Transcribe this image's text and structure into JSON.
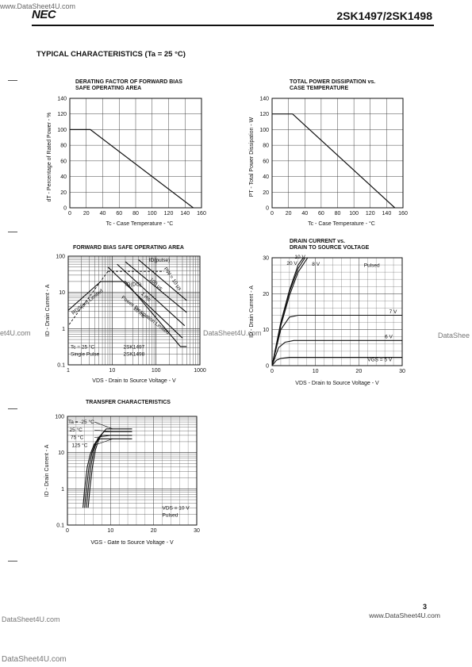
{
  "header": {
    "site_url_top": "www.DataSheet4U.com",
    "brand": "NEC",
    "part_numbers": "2SK1497/2SK1498"
  },
  "section_title": "TYPICAL CHARACTERISTICS (Ta = 25 °C)",
  "footer": {
    "page_number": "3",
    "site_url": "www.DataSheet4U.com"
  },
  "watermarks": {
    "left_mid": "et4U.com",
    "center": "DataSheet4U.com",
    "right": "DataShee",
    "bottom_left_1": "DataSheet4U.com",
    "bottom_left_2": "DataSheet4U.com"
  },
  "chart_data": [
    {
      "id": "derating",
      "type": "line",
      "title": "DERATING FACTOR OF FORWARD BIAS\nSAFE OPERATING AREA",
      "xlabel": "Tc - Case Temperature - °C",
      "ylabel": "dT - Percentage of Rated Power - %",
      "xlim": [
        0,
        160
      ],
      "ylim": [
        0,
        140
      ],
      "xticks": [
        0,
        20,
        40,
        60,
        80,
        100,
        120,
        140,
        160
      ],
      "yticks": [
        0,
        20,
        40,
        60,
        80,
        100,
        120,
        140
      ],
      "grid": true,
      "x": [
        0,
        25,
        150
      ],
      "y": [
        100,
        100,
        0
      ]
    },
    {
      "id": "power",
      "type": "line",
      "title": "TOTAL POWER DISSIPATION vs.\nCASE TEMPERATURE",
      "xlabel": "Tc - Case Temperature - °C",
      "ylabel": "PT - Total Power Dissipation - W",
      "xlim": [
        0,
        160
      ],
      "ylim": [
        0,
        140
      ],
      "xticks": [
        0,
        20,
        40,
        60,
        80,
        100,
        120,
        140,
        160
      ],
      "yticks": [
        0,
        20,
        40,
        60,
        80,
        100,
        120,
        140
      ],
      "grid": true,
      "x": [
        0,
        25,
        150
      ],
      "y": [
        120,
        120,
        0
      ]
    },
    {
      "id": "fbsoa",
      "type": "line",
      "scale": "log-log",
      "title": "FORWARD BIAS SAFE OPERATING AREA",
      "xlabel": "VDS - Drain to Source Voltage - V",
      "ylabel": "ID - Drain Current - A",
      "xlim": [
        1,
        1000
      ],
      "ylim": [
        0.1,
        100
      ],
      "xticks": [
        "1",
        "10",
        "100",
        "1000"
      ],
      "yticks": [
        "0.1",
        "1",
        "10",
        "100"
      ],
      "grid": true,
      "boundary_label": "ID(DC)",
      "pulse_label": "ID(pulse)",
      "rds_label": "RDS(on) Limited",
      "pd_label": "Power Dissipation Limited",
      "curve_labels": [
        "PW = 10 μs",
        "100 μs",
        "1 ms",
        "10 ms"
      ],
      "conditions": [
        "Tc = 25 °C",
        "Single Pulse"
      ],
      "devices": [
        "2SK1497",
        "2SK1498"
      ],
      "series": [
        {
          "name": "DC",
          "x": [
            1,
            5.5,
            20,
            360,
            500
          ],
          "y": [
            3.2,
            20,
            20,
            0.32,
            0.32
          ]
        },
        {
          "name": "PW = 10 ms",
          "x": [
            8,
            400
          ],
          "y": [
            50,
            0.55
          ]
        },
        {
          "name": "1 ms",
          "x": [
            13,
            450
          ],
          "y": [
            60,
            1.2
          ]
        },
        {
          "name": "100 μs",
          "x": [
            20,
            500
          ],
          "y": [
            70,
            2.8
          ]
        },
        {
          "name": "PW = 10 μs",
          "x": [
            40,
            500
          ],
          "y": [
            80,
            6
          ]
        }
      ]
    },
    {
      "id": "output",
      "type": "line",
      "title": "DRAIN CURRENT vs.\nDRAIN TO SOURCE VOLTAGE",
      "xlabel": "VDS - Drain to Source Voltage - V",
      "ylabel": "ID - Drain Current - A",
      "xlim": [
        0,
        30
      ],
      "ylim": [
        0,
        30
      ],
      "xticks": [
        0,
        10,
        20,
        30
      ],
      "yticks": [
        0,
        10,
        20,
        30
      ],
      "grid": true,
      "note": "Pulsed",
      "gate_label": "VGS = 5 V",
      "series": [
        {
          "name": "20 V",
          "x": [
            0,
            2,
            4,
            6,
            7.2
          ],
          "y": [
            0,
            12,
            21,
            28,
            30
          ]
        },
        {
          "name": "10 V",
          "x": [
            0,
            2,
            4,
            6,
            7.6
          ],
          "y": [
            0,
            11.5,
            20.5,
            27,
            30
          ]
        },
        {
          "name": "8 V",
          "x": [
            0,
            2,
            4,
            6,
            8.2
          ],
          "y": [
            0,
            11,
            19.5,
            26,
            30
          ]
        },
        {
          "name": "7 V",
          "x": [
            0,
            2,
            4,
            6,
            30
          ],
          "y": [
            0,
            10,
            13.5,
            14,
            14
          ]
        },
        {
          "name": "6 V",
          "x": [
            0,
            1.5,
            3,
            5,
            30
          ],
          "y": [
            0,
            5,
            6.5,
            7,
            7
          ]
        },
        {
          "name": "VGS = 5 V",
          "x": [
            0,
            1,
            2,
            4,
            30
          ],
          "y": [
            0,
            1.5,
            2,
            2.3,
            2.3
          ]
        }
      ]
    },
    {
      "id": "transfer",
      "type": "line",
      "scale": "semilog-y",
      "title": "TRANSFER CHARACTERISTICS",
      "xlabel": "VGS - Gate to Source Voltage - V",
      "ylabel": "ID - Drain Current - A",
      "xlim": [
        0,
        30
      ],
      "ylim": [
        0.1,
        100
      ],
      "xticks": [
        0,
        10,
        20,
        30
      ],
      "yticks": [
        "0.1",
        "1",
        "10",
        "100"
      ],
      "grid": true,
      "conditions": [
        "VDS = 10 V",
        "Pulsed"
      ],
      "series": [
        {
          "name": "Ta = -25 °C",
          "x": [
            4.8,
            5.2,
            5.8,
            6.5,
            7.5,
            9,
            15
          ],
          "y": [
            0.3,
            1,
            4,
            12,
            28,
            45,
            45
          ]
        },
        {
          "name": "25 °C",
          "x": [
            4.4,
            4.8,
            5.4,
            6.1,
            7,
            8.5,
            15
          ],
          "y": [
            0.3,
            1,
            4,
            11,
            24,
            38,
            38
          ]
        },
        {
          "name": "75 °C",
          "x": [
            4.0,
            4.4,
            5.0,
            5.7,
            6.6,
            8,
            15
          ],
          "y": [
            0.3,
            1,
            4,
            10,
            20,
            30,
            30
          ]
        },
        {
          "name": "125 °C",
          "x": [
            3.6,
            4.0,
            4.6,
            5.3,
            6.2,
            7.5,
            15
          ],
          "y": [
            0.3,
            1,
            4,
            9,
            17,
            24,
            24
          ]
        }
      ]
    }
  ]
}
